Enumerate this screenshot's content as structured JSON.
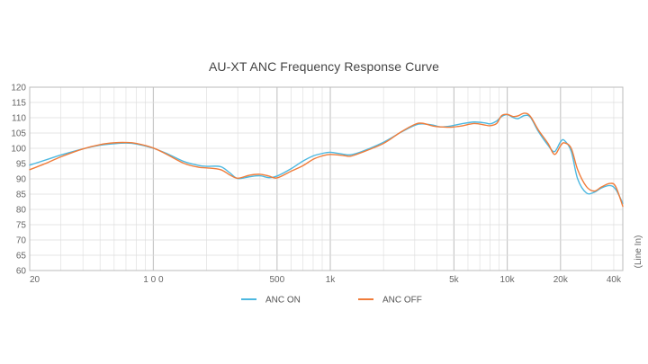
{
  "chart_data": {
    "type": "line",
    "title": "AU-XT ANC Frequency Response Curve",
    "ylabel": "(Line In)",
    "xscale": "log",
    "xlim": [
      20,
      45000
    ],
    "ylim": [
      60,
      120
    ],
    "yticks": [
      60,
      65,
      70,
      75,
      80,
      85,
      90,
      95,
      100,
      105,
      110,
      115,
      120
    ],
    "xticks": [
      {
        "value": 20,
        "label": "20"
      },
      {
        "value": 100,
        "label": "1 0 0"
      },
      {
        "value": 500,
        "label": "500"
      },
      {
        "value": 1000,
        "label": "1k"
      },
      {
        "value": 5000,
        "label": "5k"
      },
      {
        "value": 10000,
        "label": "10k"
      },
      {
        "value": 20000,
        "label": "20k"
      },
      {
        "value": 40000,
        "label": "40k"
      }
    ],
    "grid": true,
    "legend_position": "bottom",
    "series": [
      {
        "name": "ANC ON",
        "color": "#4db8e0",
        "points": [
          [
            20,
            94.5
          ],
          [
            25,
            96.3
          ],
          [
            30,
            97.8
          ],
          [
            40,
            99.8
          ],
          [
            50,
            101.0
          ],
          [
            60,
            101.5
          ],
          [
            70,
            101.7
          ],
          [
            80,
            101.4
          ],
          [
            100,
            100.0
          ],
          [
            120,
            98.2
          ],
          [
            150,
            95.6
          ],
          [
            180,
            94.4
          ],
          [
            200,
            94.1
          ],
          [
            240,
            94.0
          ],
          [
            270,
            92.0
          ],
          [
            300,
            90.1
          ],
          [
            350,
            90.7
          ],
          [
            400,
            91.0
          ],
          [
            450,
            90.4
          ],
          [
            500,
            90.9
          ],
          [
            600,
            93.3
          ],
          [
            700,
            95.8
          ],
          [
            800,
            97.5
          ],
          [
            900,
            98.3
          ],
          [
            1000,
            98.7
          ],
          [
            1200,
            98.0
          ],
          [
            1300,
            97.9
          ],
          [
            1500,
            98.9
          ],
          [
            2000,
            102.0
          ],
          [
            2500,
            105.2
          ],
          [
            3000,
            107.5
          ],
          [
            3300,
            108.0
          ],
          [
            3800,
            107.6
          ],
          [
            4200,
            107.0
          ],
          [
            4800,
            107.3
          ],
          [
            5500,
            108.0
          ],
          [
            6500,
            108.6
          ],
          [
            7500,
            108.3
          ],
          [
            8000,
            108.0
          ],
          [
            8700,
            108.9
          ],
          [
            9300,
            110.4
          ],
          [
            10000,
            111.0
          ],
          [
            10800,
            110.1
          ],
          [
            11500,
            109.7
          ],
          [
            12500,
            110.7
          ],
          [
            13500,
            110.2
          ],
          [
            15000,
            105.5
          ],
          [
            17000,
            101.0
          ],
          [
            18500,
            98.9
          ],
          [
            20000,
            102.1
          ],
          [
            21000,
            102.6
          ],
          [
            23000,
            99.0
          ],
          [
            25000,
            90.0
          ],
          [
            28000,
            85.4
          ],
          [
            31000,
            85.6
          ],
          [
            34000,
            87.0
          ],
          [
            38000,
            87.8
          ],
          [
            41000,
            86.6
          ],
          [
            45000,
            82.0
          ]
        ]
      },
      {
        "name": "ANC OFF",
        "color": "#f07c3a",
        "points": [
          [
            20,
            93.0
          ],
          [
            25,
            95.2
          ],
          [
            30,
            97.2
          ],
          [
            40,
            99.8
          ],
          [
            50,
            101.2
          ],
          [
            60,
            101.8
          ],
          [
            70,
            101.9
          ],
          [
            80,
            101.6
          ],
          [
            100,
            100.1
          ],
          [
            120,
            97.9
          ],
          [
            150,
            95.0
          ],
          [
            180,
            93.8
          ],
          [
            200,
            93.6
          ],
          [
            240,
            93.0
          ],
          [
            270,
            91.3
          ],
          [
            300,
            90.2
          ],
          [
            350,
            91.2
          ],
          [
            400,
            91.5
          ],
          [
            450,
            90.9
          ],
          [
            500,
            90.3
          ],
          [
            600,
            92.5
          ],
          [
            700,
            94.3
          ],
          [
            800,
            96.4
          ],
          [
            900,
            97.5
          ],
          [
            1000,
            98.0
          ],
          [
            1200,
            97.6
          ],
          [
            1300,
            97.4
          ],
          [
            1500,
            98.6
          ],
          [
            2000,
            101.6
          ],
          [
            2500,
            105.3
          ],
          [
            3000,
            107.8
          ],
          [
            3300,
            108.2
          ],
          [
            3800,
            107.3
          ],
          [
            4200,
            107.0
          ],
          [
            4800,
            106.9
          ],
          [
            5500,
            107.3
          ],
          [
            6500,
            108.1
          ],
          [
            7500,
            107.6
          ],
          [
            8000,
            107.4
          ],
          [
            8700,
            108.1
          ],
          [
            9300,
            110.7
          ],
          [
            10000,
            111.1
          ],
          [
            10800,
            110.4
          ],
          [
            11500,
            110.6
          ],
          [
            12500,
            111.5
          ],
          [
            13500,
            110.5
          ],
          [
            15000,
            106.0
          ],
          [
            17000,
            101.6
          ],
          [
            18500,
            98.0
          ],
          [
            20000,
            100.8
          ],
          [
            21000,
            101.8
          ],
          [
            23000,
            100.0
          ],
          [
            25000,
            93.0
          ],
          [
            28000,
            87.5
          ],
          [
            31000,
            86.0
          ],
          [
            34000,
            87.3
          ],
          [
            38000,
            88.5
          ],
          [
            41000,
            87.5
          ],
          [
            45000,
            81.0
          ]
        ]
      }
    ]
  }
}
